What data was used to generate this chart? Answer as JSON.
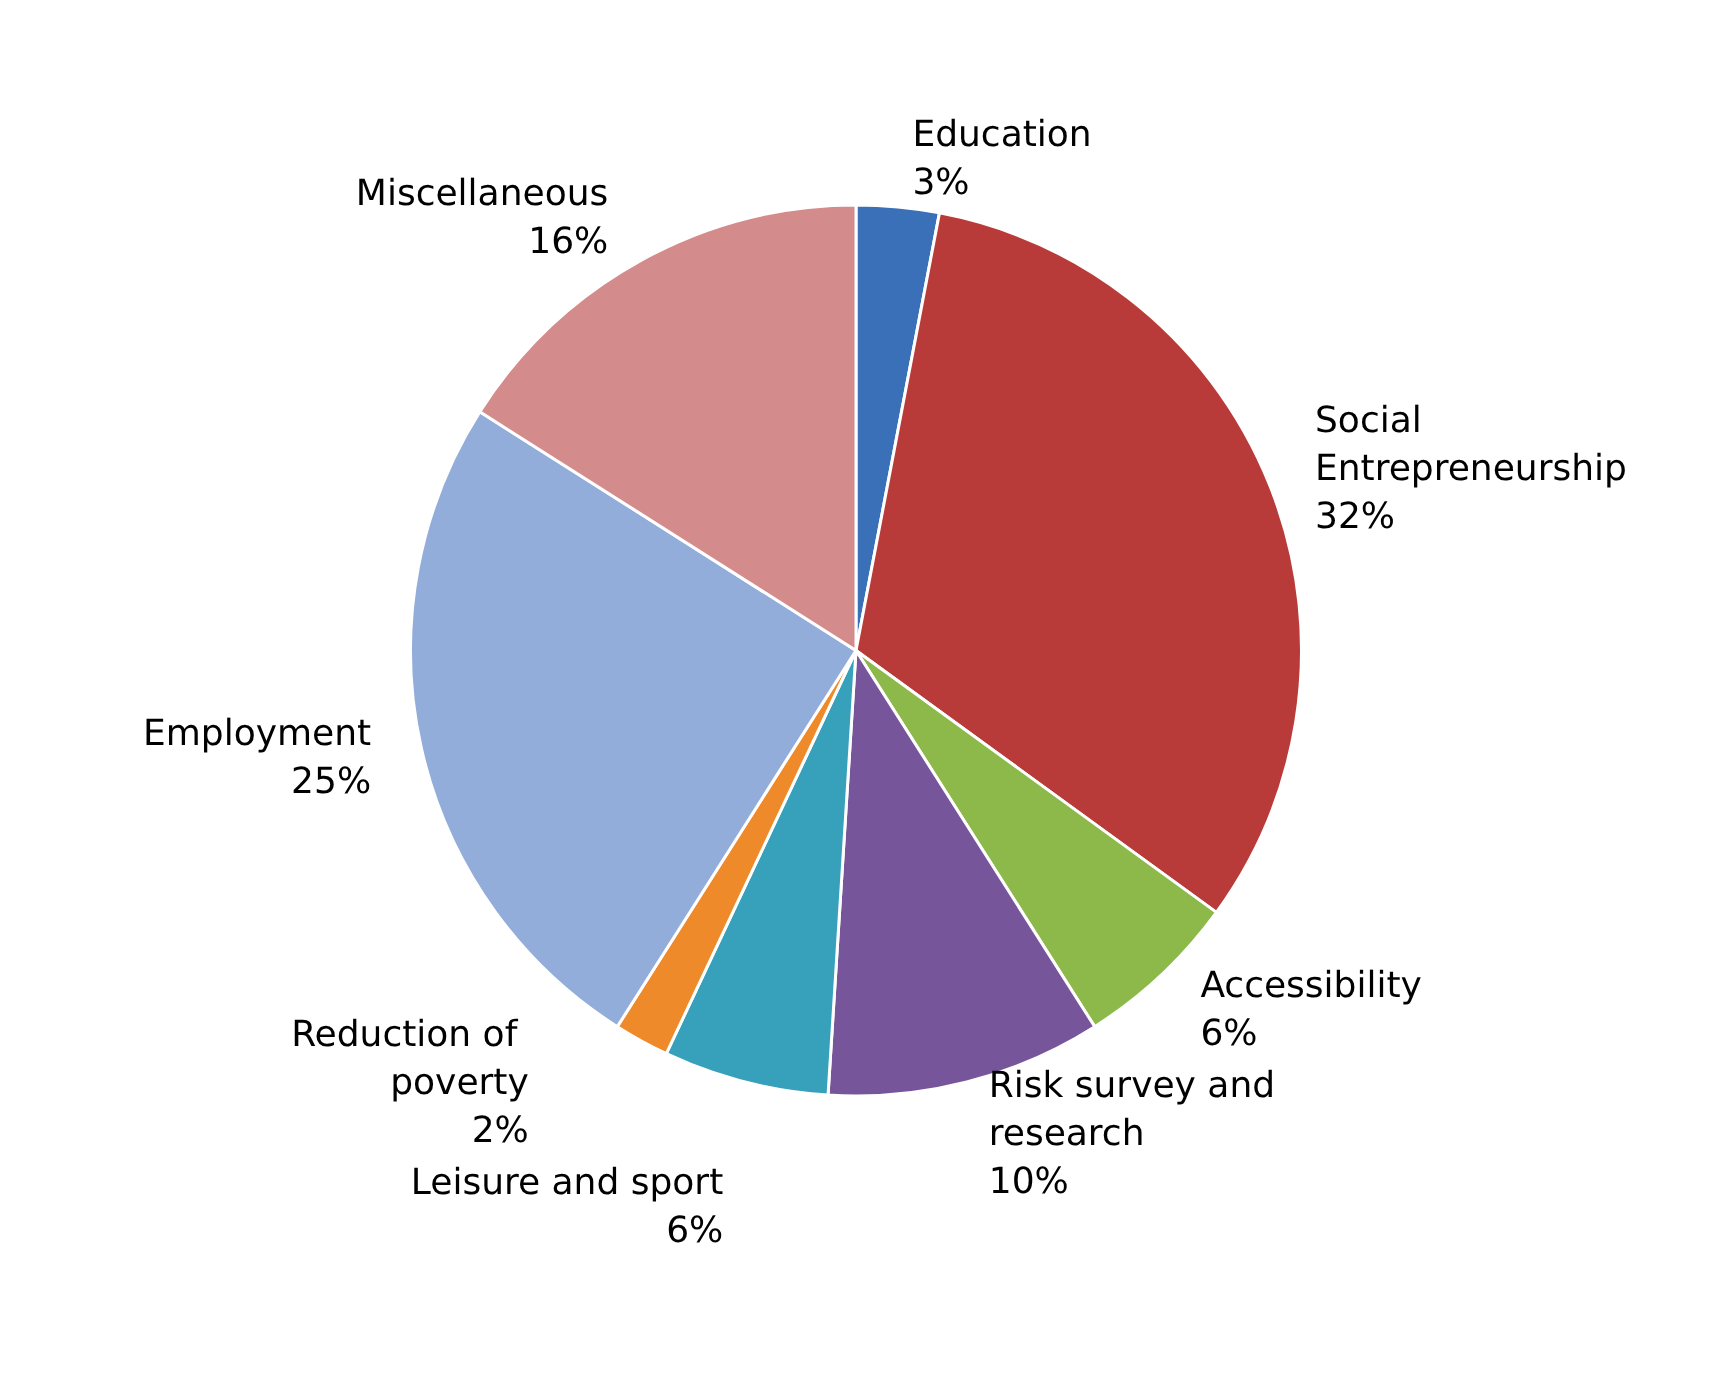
{
  "chart_data": {
    "type": "pie",
    "categories": [
      "Education",
      "Social Entrepreneurship",
      "Accessibility",
      "Risk survey and research",
      "Leisure and sport",
      "Reduction of poverty",
      "Employment",
      "Miscellaneous"
    ],
    "values": [
      3,
      32,
      6,
      10,
      6,
      2,
      25,
      16
    ],
    "value_labels": [
      "3%",
      "32%",
      "6%",
      "10%",
      "6%",
      "2%",
      "25%",
      "16%"
    ],
    "colors": [
      "#3a70b8",
      "#b93b39",
      "#8db84a",
      "#77559a",
      "#37a0bb",
      "#ef8a2a",
      "#93addb",
      "#d48b8b"
    ]
  }
}
